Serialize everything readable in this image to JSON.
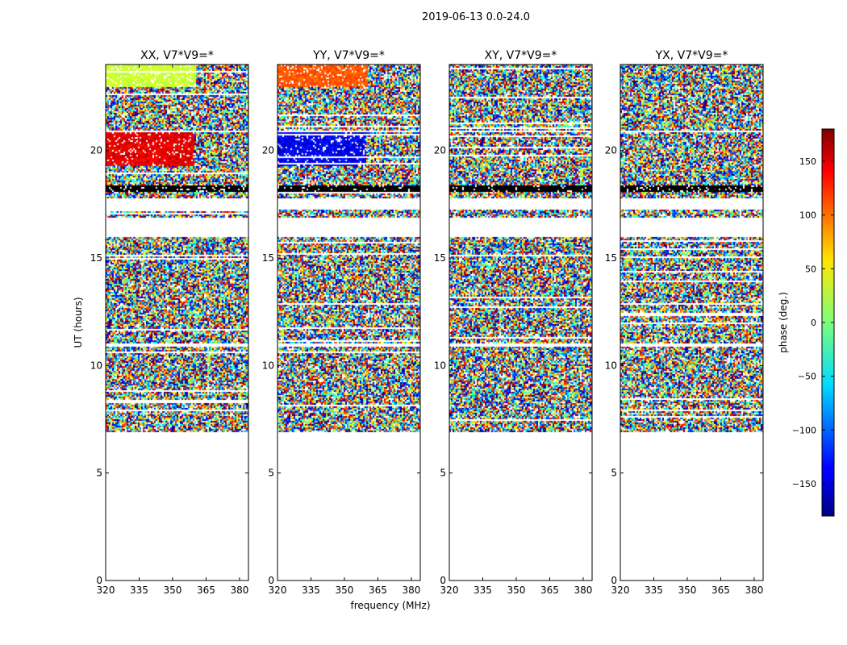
{
  "chart_data": {
    "type": "heatmap",
    "suptitle": "2019-06-13 0.0-24.0",
    "xlabel": "frequency (MHz)",
    "ylabel": "UT (hours)",
    "xlim": [
      320,
      384
    ],
    "ylim": [
      0,
      24
    ],
    "x_ticks": [
      320,
      335,
      350,
      365,
      380
    ],
    "y_ticks": [
      0,
      5,
      10,
      15,
      20
    ],
    "panels": [
      {
        "title": "XX, V7*V9=*",
        "pol": "XX"
      },
      {
        "title": "YY, V7*V9=*",
        "pol": "YY"
      },
      {
        "title": "XY, V7*V9=*",
        "pol": "XY"
      },
      {
        "title": "YX, V7*V9=*",
        "pol": "YX"
      }
    ],
    "data_start_hour": 6.9,
    "gap_hours": [
      [
        16.0,
        16.9
      ],
      [
        17.3,
        17.8
      ],
      [
        10.9,
        11.1
      ],
      [
        20.9,
        21.0
      ]
    ],
    "colorbar": {
      "label": "phase (deg.)",
      "range": [
        -180,
        180
      ],
      "ticks": [
        -150,
        -100,
        -50,
        0,
        50,
        100,
        150
      ],
      "tick_labels": [
        "−150",
        "−100",
        "−50",
        "0",
        "50",
        "100",
        "150"
      ],
      "colormap": "jet"
    }
  }
}
